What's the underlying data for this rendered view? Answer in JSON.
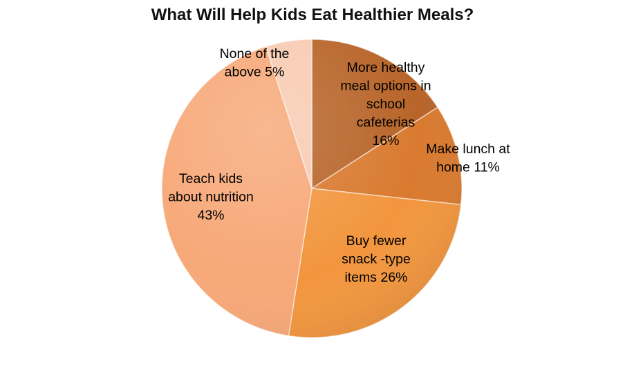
{
  "chart_data": {
    "type": "pie",
    "title": "What Will Help Kids Eat Healthier Meals?",
    "slices": [
      {
        "label": "More healthy meal options in school cafeterias",
        "value": 16,
        "value_label": "16%",
        "color": "#b8652a",
        "label_lines": [
          "More healthy",
          "meal options in",
          "school",
          "cafeterias",
          "16%"
        ]
      },
      {
        "label": "Make lunch at home",
        "value": 11,
        "value_label": "11%",
        "color": "#d97a30",
        "label_lines": [
          "Make lunch at",
          "home 11%"
        ]
      },
      {
        "label": "Buy fewer snack -type items",
        "value": 26,
        "value_label": "26%",
        "color": "#f2963e",
        "label_lines": [
          "Buy fewer",
          "snack -type",
          "items 26%"
        ]
      },
      {
        "label": "Teach kids about nutrition",
        "value": 43,
        "value_label": "43%",
        "color": "#f7a878",
        "label_lines": [
          "Teach kids",
          "about nutrition",
          "43%"
        ]
      },
      {
        "label": "None of the above",
        "value": 5,
        "value_label": "5%",
        "color": "#f8cbb2",
        "label_lines": [
          "None of the",
          "above  5%"
        ]
      }
    ],
    "start_angle_deg": 0,
    "direction": "clockwise",
    "legend": "none",
    "style": "3d-shaded"
  }
}
